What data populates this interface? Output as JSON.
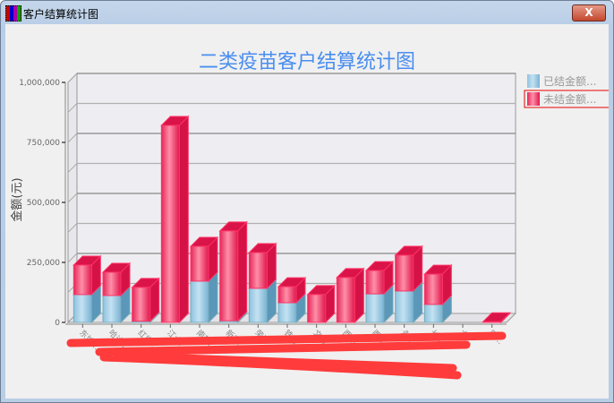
{
  "window": {
    "title": "客户结算统计图",
    "close_label": "X"
  },
  "chart_data": {
    "type": "bar",
    "stacked": true,
    "three_d": true,
    "title": "二类疫苗客户结算统计图",
    "xlabel": "",
    "ylabel": "金额(元)",
    "ylim": [
      0,
      1000000
    ],
    "yticks": [
      "0",
      "250,000",
      "500,000",
      "750,000",
      "1,000,000"
    ],
    "grid": true,
    "legend_position": "top-right",
    "categories": [
      "东城…",
      "哈达…",
      "红旗…",
      "江大…",
      "南新…",
      "新开…",
      "荣源…",
      "铁南…",
      "文路…",
      "西湖…",
      "西北…",
      "永…",
      "长…",
      "太…",
      "口…"
    ],
    "series": [
      {
        "name": "已结金额...",
        "color": "#7fb8d8",
        "values": [
          116000,
          112000,
          5000,
          0,
          172000,
          7000,
          142000,
          82000,
          0,
          0,
          119000,
          131000,
          75000,
          0,
          0
        ]
      },
      {
        "name": "未结金额...",
        "color": "#e0174d",
        "values": [
          123000,
          97000,
          141000,
          821000,
          145000,
          374000,
          149000,
          67000,
          116000,
          187000,
          97000,
          149000,
          126000,
          0,
          3000
        ]
      }
    ]
  }
}
